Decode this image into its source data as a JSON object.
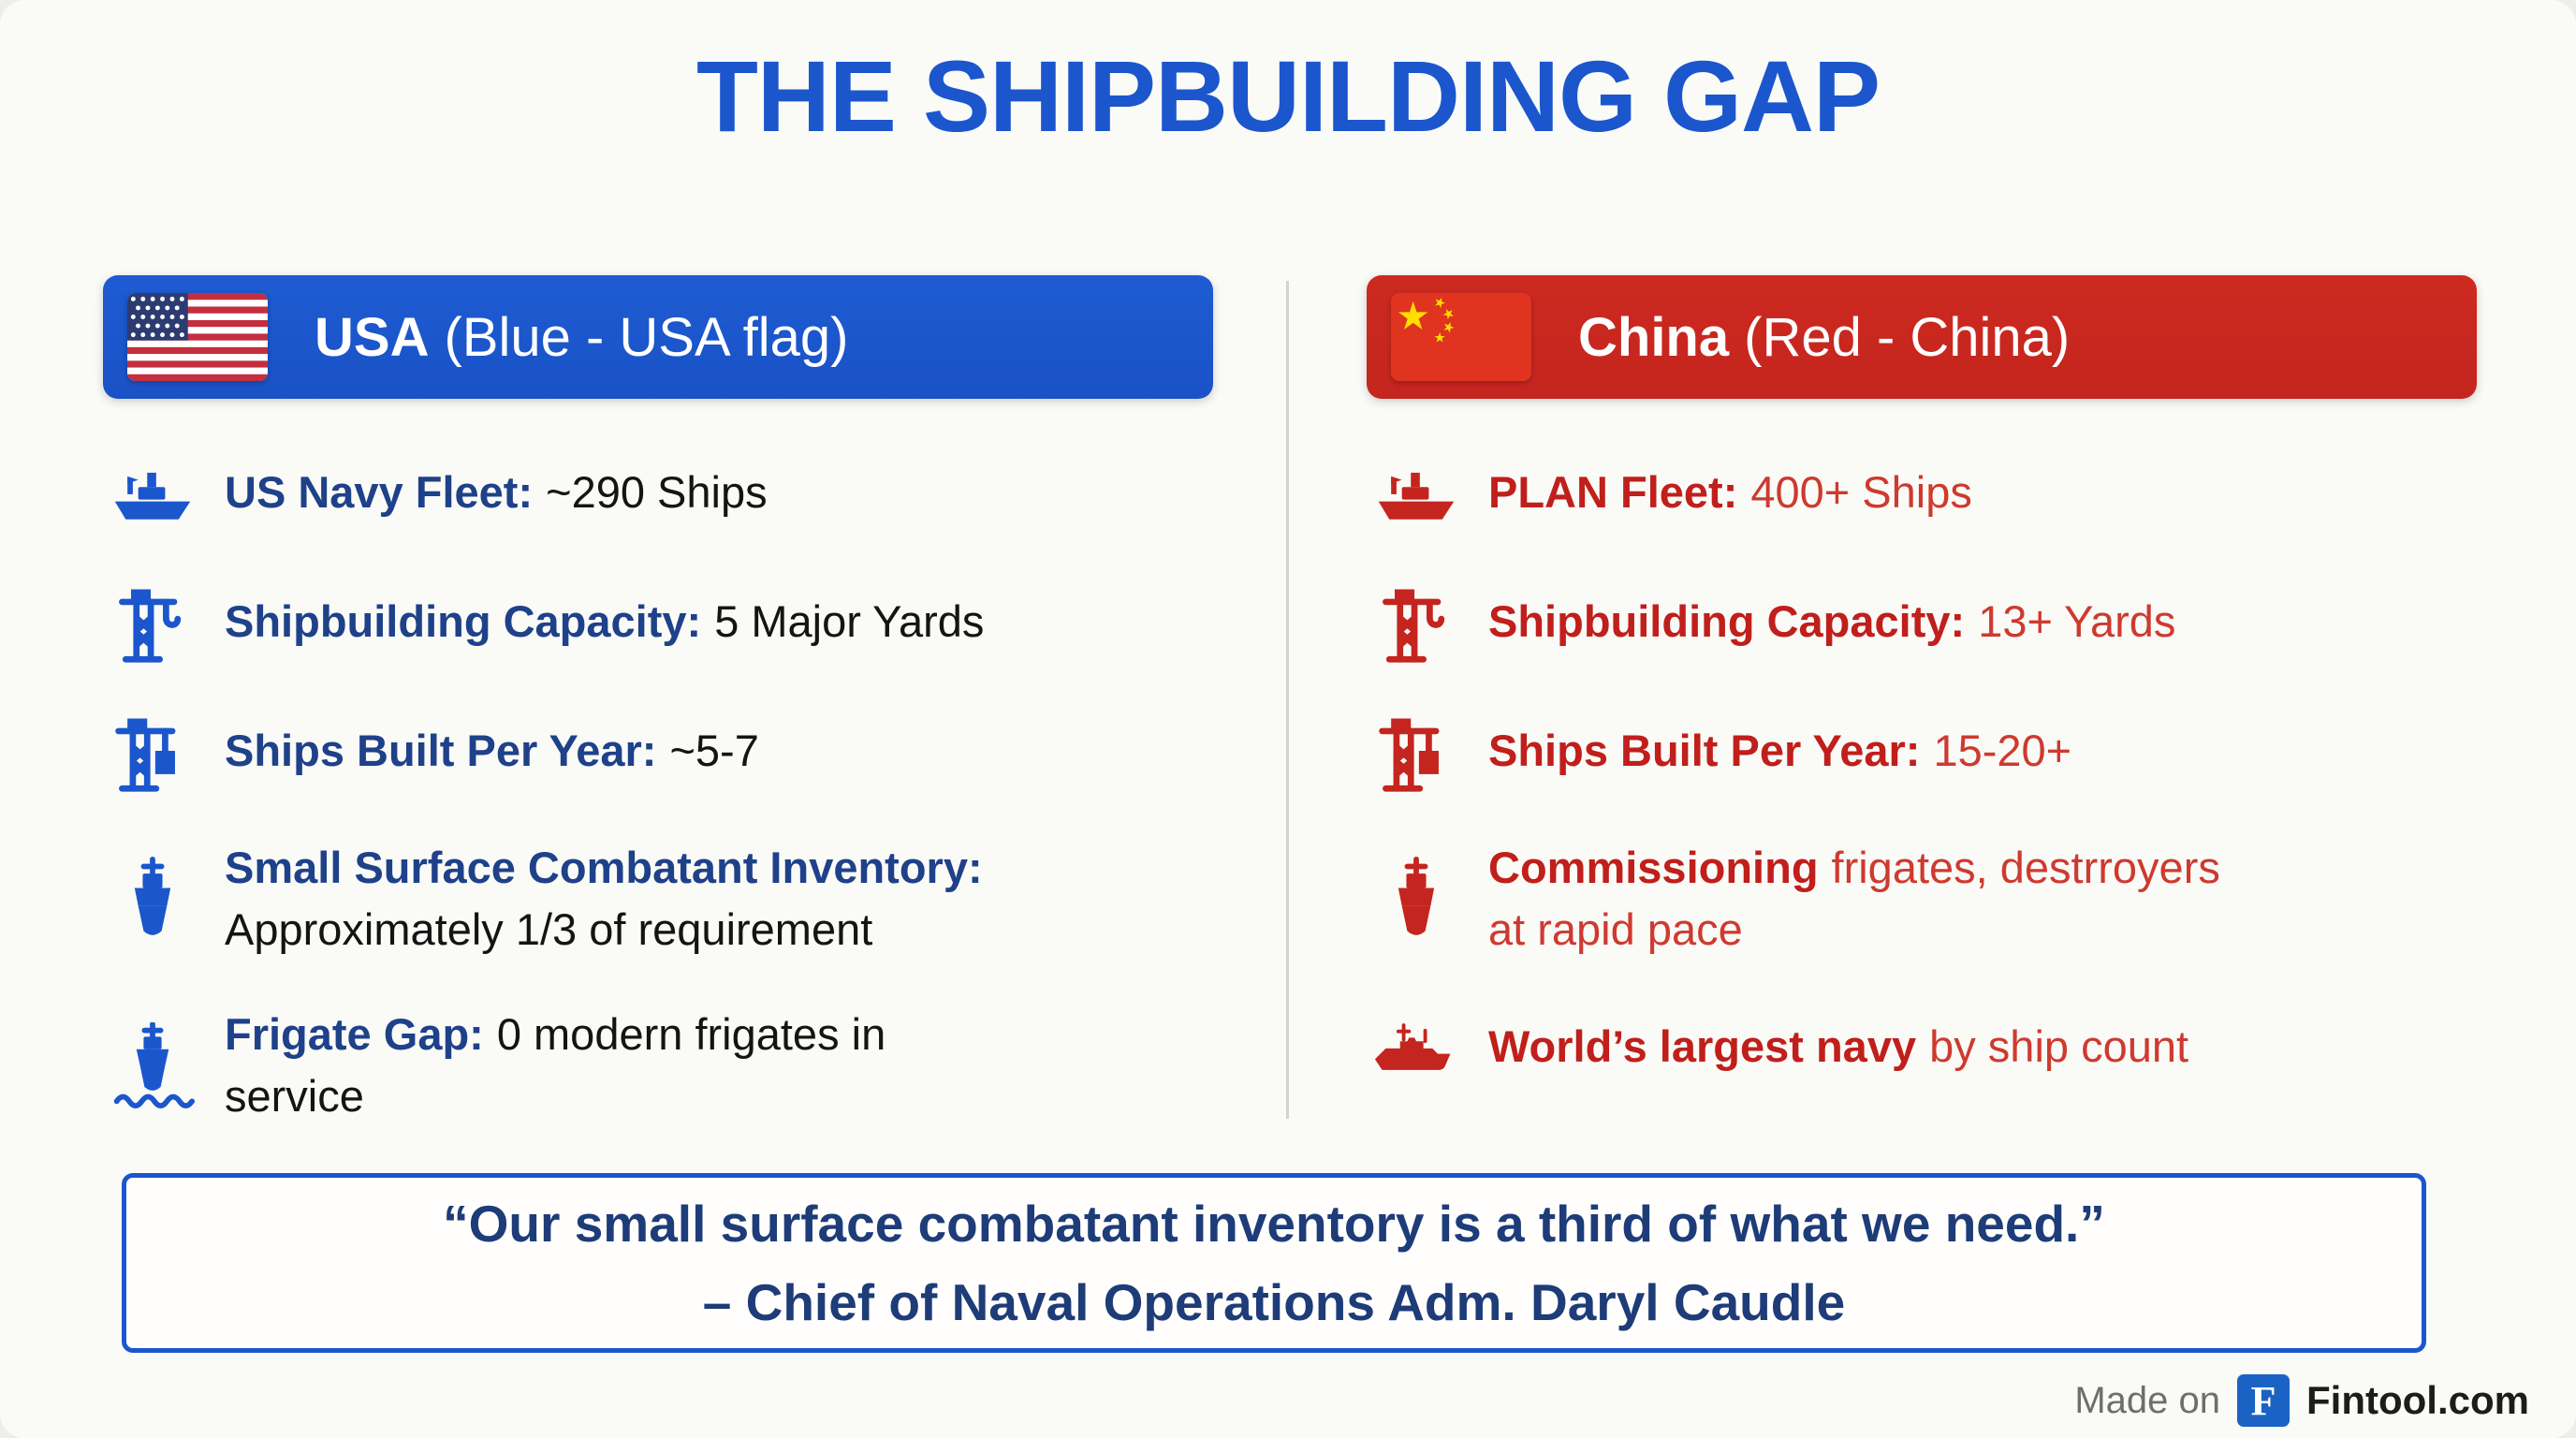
{
  "title": "THE SHIPBUILDING GAP",
  "usa": {
    "banner_title": "USA",
    "banner_subtitle": "(Blue - USA flag)",
    "rows": [
      {
        "icon": "ship-icon",
        "label": "US Navy Fleet:",
        "value": "~290 Ships"
      },
      {
        "icon": "crane-icon",
        "label": "Shipbuilding Capacity:",
        "value": "5 Major Yards"
      },
      {
        "icon": "crane-load-icon",
        "label": "Ships Built Per Year:",
        "value": "~5-7"
      },
      {
        "icon": "warship-icon",
        "label": "Small Surface Combatant Inventory:",
        "value": "Approximately 1/3 of requirement"
      },
      {
        "icon": "frigate-icon",
        "label": "Frigate Gap:",
        "value": "0 modern frigates in",
        "value2": "service"
      }
    ]
  },
  "china": {
    "banner_title": "China",
    "banner_subtitle": "(Red - China)",
    "rows": [
      {
        "icon": "ship-icon",
        "label": "PLAN Fleet:",
        "value": "400+ Ships"
      },
      {
        "icon": "crane-icon",
        "label": "Shipbuilding Capacity:",
        "value": "13+ Yards"
      },
      {
        "icon": "crane-load-icon",
        "label": "Ships Built Per Year:",
        "value": "15-20+"
      },
      {
        "icon": "warship-icon",
        "label": "Commissioning",
        "value": "frigates, destrroyers",
        "value2": "at rapid pace"
      },
      {
        "icon": "destroyer-icon",
        "label": "World’s largest navy",
        "value": "by ship count"
      }
    ]
  },
  "quote": {
    "line1": "“Our small surface combatant inventory is a third of what we need.”",
    "line2": "– Chief of Naval Operations Adm. Daryl Caudle"
  },
  "footer": {
    "made_on": "Made on",
    "logo_letter": "F",
    "brand": "Fintool.com"
  },
  "colors": {
    "usa_primary": "#1b56cd",
    "usa_banner": "#1a52c6",
    "usa_label": "#1e4189",
    "china_primary": "#c4251e",
    "china_label": "#c01f1b",
    "china_value": "#ce3a2f",
    "ink": "#141414"
  }
}
